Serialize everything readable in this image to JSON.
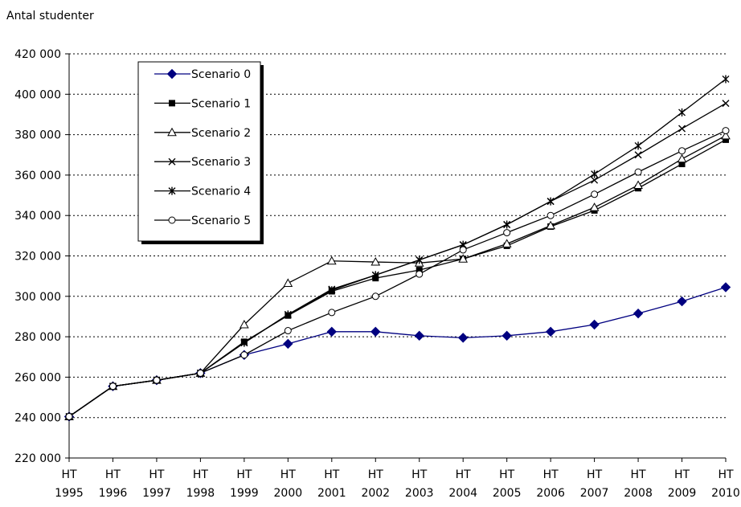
{
  "chart_data": {
    "type": "line",
    "title": "",
    "ylabel": "Antal studenter",
    "xlabel": "",
    "ylim": [
      220000,
      420000
    ],
    "y_ticks": [
      220000,
      240000,
      260000,
      280000,
      300000,
      320000,
      340000,
      360000,
      380000,
      400000,
      420000
    ],
    "y_tick_labels": [
      "220 000",
      "240 000",
      "260 000",
      "280 000",
      "300 000",
      "320 000",
      "340 000",
      "360 000",
      "380 000",
      "400 000",
      "420 000"
    ],
    "categories": [
      [
        "HT",
        "1995"
      ],
      [
        "HT",
        "1996"
      ],
      [
        "HT",
        "1997"
      ],
      [
        "HT",
        "1998"
      ],
      [
        "HT",
        "1999"
      ],
      [
        "HT",
        "2000"
      ],
      [
        "HT",
        "2001"
      ],
      [
        "HT",
        "2002"
      ],
      [
        "HT",
        "2003"
      ],
      [
        "HT",
        "2004"
      ],
      [
        "HT",
        "2005"
      ],
      [
        "HT",
        "2006"
      ],
      [
        "HT",
        "2007"
      ],
      [
        "HT",
        "2008"
      ],
      [
        "HT",
        "2009"
      ],
      [
        "HT",
        "2010"
      ]
    ],
    "grid": "horizontal dotted",
    "legend_position": "top-left",
    "series": [
      {
        "name": "Scenario 0",
        "marker": "diamond-filled",
        "color": "#000080",
        "values": [
          240500,
          255500,
          258500,
          262000,
          271000,
          276500,
          282500,
          282500,
          280500,
          279500,
          280500,
          282500,
          286000,
          291500,
          297500,
          304500
        ]
      },
      {
        "name": "Scenario 1",
        "marker": "square-filled",
        "color": "#000000",
        "values": [
          240500,
          255500,
          258500,
          262000,
          277500,
          290500,
          302500,
          309000,
          313000,
          318500,
          325000,
          334500,
          342500,
          353500,
          365500,
          377500
        ]
      },
      {
        "name": "Scenario 2",
        "marker": "triangle-open",
        "color": "#000000",
        "values": [
          240500,
          255500,
          258500,
          262000,
          286000,
          306500,
          317500,
          317000,
          316500,
          318500,
          326000,
          335000,
          344000,
          355000,
          368000,
          379500
        ]
      },
      {
        "name": "Scenario 3",
        "marker": "x",
        "color": "#000000",
        "values": [
          240500,
          255500,
          258500,
          262000,
          277000,
          291000,
          303500,
          310500,
          318000,
          325500,
          335500,
          347000,
          357500,
          370000,
          383000,
          395500
        ]
      },
      {
        "name": "Scenario 4",
        "marker": "star",
        "color": "#000000",
        "values": [
          240500,
          255500,
          258500,
          262000,
          277000,
          291000,
          303000,
          310500,
          318000,
          325500,
          335500,
          347000,
          360500,
          374500,
          391000,
          407500
        ]
      },
      {
        "name": "Scenario 5",
        "marker": "circle-open",
        "color": "#000000",
        "values": [
          240500,
          255500,
          258500,
          262000,
          271000,
          283000,
          292000,
          300000,
          311000,
          323000,
          331500,
          340000,
          350500,
          361500,
          372000,
          382000
        ]
      }
    ]
  }
}
